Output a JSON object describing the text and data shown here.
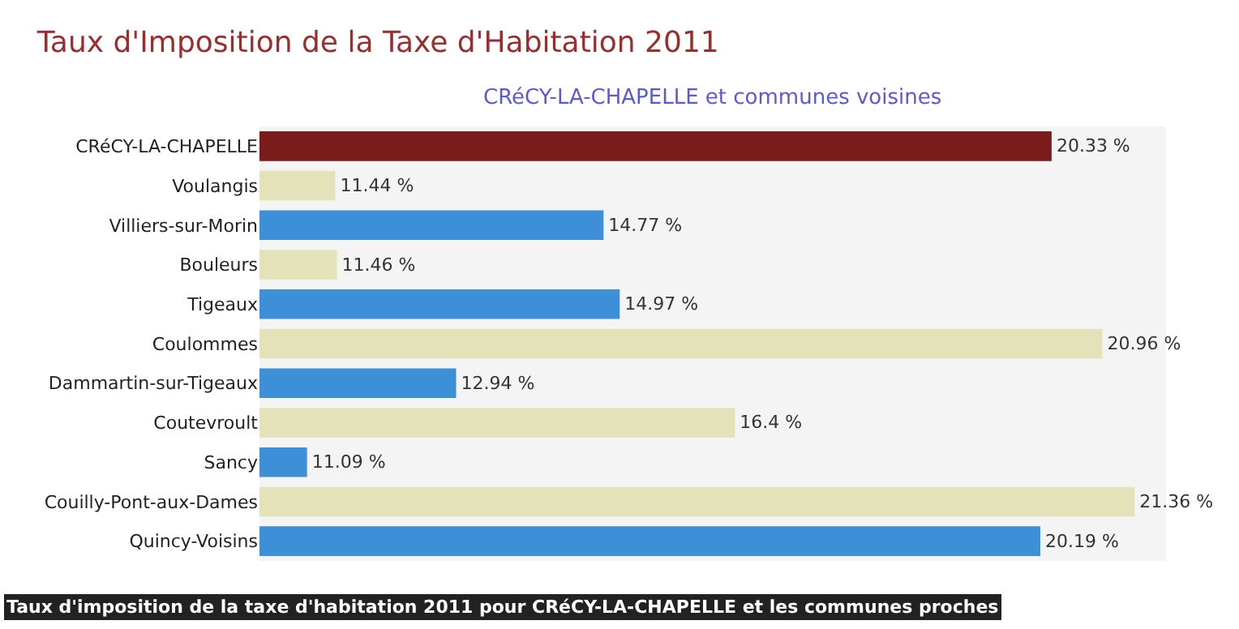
{
  "chart_data": {
    "type": "bar",
    "orientation": "horizontal",
    "title": "Taux d'Imposition de la Taxe d'Habitation 2011",
    "subtitle": "CRéCY-LA-CHAPELLE et communes voisines",
    "categories": [
      "CRéCY-LA-CHAPELLE",
      "Voulangis",
      "Villiers-sur-Morin",
      "Bouleurs",
      "Tigeaux",
      "Coulommes",
      "Dammartin-sur-Tigeaux",
      "Coutevroult",
      "Sancy",
      "Couilly-Pont-aux-Dames",
      "Quincy-Voisins"
    ],
    "values": [
      20.33,
      11.44,
      14.77,
      11.46,
      14.97,
      20.96,
      12.94,
      16.4,
      11.09,
      21.36,
      20.19
    ],
    "value_labels": [
      "20.33 %",
      "11.44 %",
      "14.77 %",
      "11.46 %",
      "14.97 %",
      "20.96 %",
      "12.94 %",
      "16.4 %",
      "11.09 %",
      "21.36 %",
      "20.19 %"
    ],
    "colors": [
      "#7a1c1c",
      "#e3e2b8",
      "#3d8fd8",
      "#e3e2b8",
      "#3d8fd8",
      "#e3e2b8",
      "#3d8fd8",
      "#e3e2b8",
      "#3d8fd8",
      "#e3e2b8",
      "#3d8fd8"
    ],
    "xlim": [
      10.5,
      21.75
    ],
    "tick_labels": "y",
    "grid": false,
    "annotations": [
      "Taux d'imposition de la taxe d'habitation 2011 pour CRéCY-LA-CHAPELLE et les communes proches"
    ]
  }
}
